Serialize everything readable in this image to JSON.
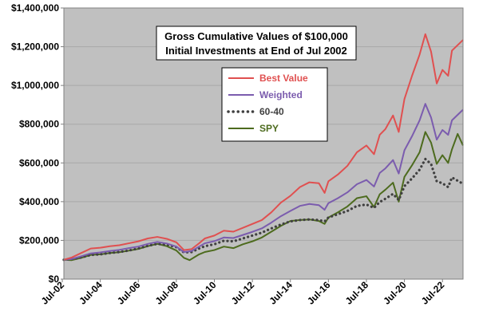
{
  "chart_data": {
    "type": "line",
    "title": [
      "Gross Cumulative Values of $100,000",
      "Initial Investments at End of Jul 2002"
    ],
    "xlabel": "",
    "ylabel": "",
    "ylim": [
      0,
      1400000
    ],
    "yticks": [
      0,
      200000,
      400000,
      600000,
      800000,
      1000000,
      1200000,
      1400000
    ],
    "ytick_labels": [
      "$0",
      "$200,000",
      "$400,000",
      "$600,000",
      "$800,000",
      "$1,000,000",
      "$1,200,000",
      "$1,400,000"
    ],
    "xlim": [
      2002.583,
      2023.583
    ],
    "xticks": [
      2002.5,
      2004.5,
      2006.5,
      2008.5,
      2010.5,
      2012.5,
      2014.5,
      2016.5,
      2018.5,
      2020.5,
      2022.5
    ],
    "xtick_labels": [
      "Jul-02",
      "Jul-04",
      "Jul-06",
      "Jul-08",
      "Jul-10",
      "Jul-12",
      "Jul-14",
      "Jul-16",
      "Jul-18",
      "Jul-20",
      "Jul-22"
    ],
    "grid": true,
    "background": "#c0c0c0",
    "legend_position": "inside-upper-center",
    "series": [
      {
        "name": "Best Value",
        "color": "#e05050",
        "style": "solid",
        "points": [
          [
            2002.58,
            100000
          ],
          [
            2003.0,
            112000
          ],
          [
            2003.5,
            135000
          ],
          [
            2004.0,
            158000
          ],
          [
            2004.5,
            162000
          ],
          [
            2005.0,
            170000
          ],
          [
            2005.5,
            175000
          ],
          [
            2006.0,
            185000
          ],
          [
            2006.5,
            195000
          ],
          [
            2007.0,
            210000
          ],
          [
            2007.5,
            218000
          ],
          [
            2008.0,
            208000
          ],
          [
            2008.5,
            190000
          ],
          [
            2008.9,
            150000
          ],
          [
            2009.3,
            155000
          ],
          [
            2009.7,
            185000
          ],
          [
            2010.0,
            210000
          ],
          [
            2010.5,
            225000
          ],
          [
            2011.0,
            250000
          ],
          [
            2011.5,
            245000
          ],
          [
            2012.0,
            265000
          ],
          [
            2012.5,
            285000
          ],
          [
            2013.0,
            305000
          ],
          [
            2013.5,
            345000
          ],
          [
            2014.0,
            395000
          ],
          [
            2014.5,
            430000
          ],
          [
            2015.0,
            475000
          ],
          [
            2015.5,
            500000
          ],
          [
            2016.0,
            495000
          ],
          [
            2016.3,
            445000
          ],
          [
            2016.5,
            505000
          ],
          [
            2017.0,
            540000
          ],
          [
            2017.5,
            585000
          ],
          [
            2018.0,
            655000
          ],
          [
            2018.5,
            690000
          ],
          [
            2018.9,
            645000
          ],
          [
            2019.2,
            745000
          ],
          [
            2019.5,
            775000
          ],
          [
            2019.9,
            845000
          ],
          [
            2020.2,
            760000
          ],
          [
            2020.5,
            930000
          ],
          [
            2020.9,
            1050000
          ],
          [
            2021.3,
            1160000
          ],
          [
            2021.6,
            1265000
          ],
          [
            2021.9,
            1175000
          ],
          [
            2022.2,
            1010000
          ],
          [
            2022.5,
            1080000
          ],
          [
            2022.8,
            1050000
          ],
          [
            2023.0,
            1180000
          ],
          [
            2023.583,
            1235000
          ]
        ]
      },
      {
        "name": "Weighted",
        "color": "#7b5cae",
        "style": "solid",
        "points": [
          [
            2002.58,
            100000
          ],
          [
            2003.0,
            104000
          ],
          [
            2003.5,
            118000
          ],
          [
            2004.0,
            133000
          ],
          [
            2004.5,
            138000
          ],
          [
            2005.0,
            145000
          ],
          [
            2005.5,
            151000
          ],
          [
            2006.0,
            160000
          ],
          [
            2006.5,
            168000
          ],
          [
            2007.0,
            182000
          ],
          [
            2007.5,
            192000
          ],
          [
            2008.0,
            184000
          ],
          [
            2008.5,
            168000
          ],
          [
            2008.9,
            140000
          ],
          [
            2009.3,
            145000
          ],
          [
            2009.7,
            168000
          ],
          [
            2010.0,
            185000
          ],
          [
            2010.5,
            196000
          ],
          [
            2011.0,
            215000
          ],
          [
            2011.5,
            212000
          ],
          [
            2012.0,
            228000
          ],
          [
            2012.5,
            244000
          ],
          [
            2013.0,
            262000
          ],
          [
            2013.5,
            292000
          ],
          [
            2014.0,
            325000
          ],
          [
            2014.5,
            352000
          ],
          [
            2015.0,
            378000
          ],
          [
            2015.5,
            388000
          ],
          [
            2016.0,
            382000
          ],
          [
            2016.3,
            358000
          ],
          [
            2016.5,
            392000
          ],
          [
            2017.0,
            418000
          ],
          [
            2017.5,
            448000
          ],
          [
            2018.0,
            490000
          ],
          [
            2018.5,
            512000
          ],
          [
            2018.9,
            478000
          ],
          [
            2019.2,
            548000
          ],
          [
            2019.5,
            572000
          ],
          [
            2019.9,
            615000
          ],
          [
            2020.2,
            545000
          ],
          [
            2020.5,
            665000
          ],
          [
            2020.9,
            738000
          ],
          [
            2021.3,
            820000
          ],
          [
            2021.6,
            905000
          ],
          [
            2021.9,
            835000
          ],
          [
            2022.2,
            720000
          ],
          [
            2022.5,
            770000
          ],
          [
            2022.8,
            745000
          ],
          [
            2023.0,
            820000
          ],
          [
            2023.583,
            875000
          ]
        ]
      },
      {
        "name": "60-40",
        "color": "#404040",
        "style": "dotted",
        "points": [
          [
            2002.58,
            100000
          ],
          [
            2003.0,
            104000
          ],
          [
            2003.5,
            112000
          ],
          [
            2004.0,
            125000
          ],
          [
            2004.5,
            128000
          ],
          [
            2005.0,
            135000
          ],
          [
            2005.5,
            140000
          ],
          [
            2006.0,
            148000
          ],
          [
            2006.5,
            158000
          ],
          [
            2007.0,
            172000
          ],
          [
            2007.5,
            182000
          ],
          [
            2008.0,
            178000
          ],
          [
            2008.5,
            165000
          ],
          [
            2008.9,
            138000
          ],
          [
            2009.3,
            140000
          ],
          [
            2009.7,
            158000
          ],
          [
            2010.0,
            170000
          ],
          [
            2010.5,
            180000
          ],
          [
            2011.0,
            198000
          ],
          [
            2011.5,
            195000
          ],
          [
            2012.0,
            210000
          ],
          [
            2012.5,
            225000
          ],
          [
            2013.0,
            240000
          ],
          [
            2013.5,
            262000
          ],
          [
            2014.0,
            282000
          ],
          [
            2014.5,
            298000
          ],
          [
            2015.0,
            305000
          ],
          [
            2015.5,
            308000
          ],
          [
            2016.0,
            305000
          ],
          [
            2016.3,
            298000
          ],
          [
            2016.5,
            318000
          ],
          [
            2017.0,
            335000
          ],
          [
            2017.5,
            352000
          ],
          [
            2018.0,
            378000
          ],
          [
            2018.5,
            385000
          ],
          [
            2018.9,
            368000
          ],
          [
            2019.2,
            398000
          ],
          [
            2019.5,
            415000
          ],
          [
            2019.9,
            440000
          ],
          [
            2020.2,
            408000
          ],
          [
            2020.5,
            480000
          ],
          [
            2020.9,
            520000
          ],
          [
            2021.3,
            565000
          ],
          [
            2021.6,
            620000
          ],
          [
            2021.9,
            595000
          ],
          [
            2022.2,
            505000
          ],
          [
            2022.5,
            495000
          ],
          [
            2022.8,
            475000
          ],
          [
            2023.0,
            525000
          ],
          [
            2023.583,
            492000
          ]
        ]
      },
      {
        "name": "SPY",
        "color": "#4d6b1e",
        "style": "solid",
        "points": [
          [
            2002.58,
            100000
          ],
          [
            2003.0,
            98000
          ],
          [
            2003.5,
            110000
          ],
          [
            2004.0,
            125000
          ],
          [
            2004.5,
            128000
          ],
          [
            2005.0,
            135000
          ],
          [
            2005.5,
            139000
          ],
          [
            2006.0,
            147000
          ],
          [
            2006.5,
            156000
          ],
          [
            2007.0,
            170000
          ],
          [
            2007.5,
            182000
          ],
          [
            2008.0,
            170000
          ],
          [
            2008.5,
            148000
          ],
          [
            2008.9,
            110000
          ],
          [
            2009.2,
            98000
          ],
          [
            2009.7,
            128000
          ],
          [
            2010.0,
            140000
          ],
          [
            2010.5,
            150000
          ],
          [
            2011.0,
            168000
          ],
          [
            2011.5,
            160000
          ],
          [
            2012.0,
            180000
          ],
          [
            2012.5,
            195000
          ],
          [
            2013.0,
            215000
          ],
          [
            2013.5,
            245000
          ],
          [
            2014.0,
            275000
          ],
          [
            2014.5,
            300000
          ],
          [
            2015.0,
            305000
          ],
          [
            2015.5,
            308000
          ],
          [
            2016.0,
            300000
          ],
          [
            2016.3,
            285000
          ],
          [
            2016.5,
            318000
          ],
          [
            2017.0,
            345000
          ],
          [
            2017.5,
            375000
          ],
          [
            2018.0,
            418000
          ],
          [
            2018.5,
            428000
          ],
          [
            2018.9,
            372000
          ],
          [
            2019.2,
            438000
          ],
          [
            2019.5,
            462000
          ],
          [
            2019.9,
            498000
          ],
          [
            2020.2,
            400000
          ],
          [
            2020.5,
            528000
          ],
          [
            2020.9,
            588000
          ],
          [
            2021.3,
            655000
          ],
          [
            2021.6,
            760000
          ],
          [
            2021.9,
            705000
          ],
          [
            2022.2,
            595000
          ],
          [
            2022.5,
            640000
          ],
          [
            2022.8,
            600000
          ],
          [
            2023.0,
            670000
          ],
          [
            2023.3,
            750000
          ],
          [
            2023.583,
            690000
          ]
        ]
      }
    ]
  }
}
